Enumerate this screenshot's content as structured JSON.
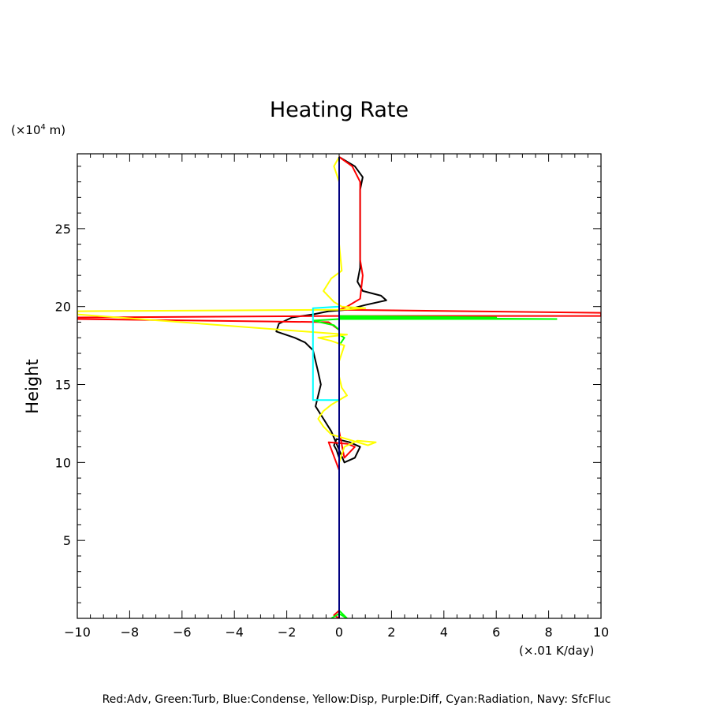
{
  "chart_data": {
    "type": "line",
    "title": "Heating Rate",
    "xlabel": "",
    "ylabel": "Height",
    "x_unit": "(×.01 K/day)",
    "y_unit_prefix": "(×10",
    "y_unit_exp": "4",
    "y_unit_suffix": " m)",
    "xlim": [
      -10,
      10
    ],
    "ylim": [
      0,
      29.8
    ],
    "xticks": [
      -10,
      -8,
      -6,
      -4,
      -2,
      0,
      2,
      4,
      6,
      8,
      10
    ],
    "xtick_labels": [
      "−10",
      "−8",
      "−6",
      "−4",
      "−2",
      "0",
      "2",
      "4",
      "6",
      "8",
      "10"
    ],
    "yticks": [
      5,
      10,
      15,
      20,
      25
    ],
    "ytick_labels": [
      "5",
      "10",
      "15",
      "20",
      "25"
    ],
    "grid": false,
    "legend_text": "Red:Adv, Green:Turb, Blue:Condense, Yellow:Disp, Purple:Diff, Cyan:Radiation, Navy: SfcFluc",
    "legend_placement": "bottom",
    "series": [
      {
        "color": "#000000",
        "x": [
          0.0,
          0.0,
          0.0,
          0.0,
          -0.1,
          -0.2,
          -0.1,
          0.4,
          0.8,
          0.6,
          0.2,
          -0.3,
          -0.6,
          -0.9,
          -0.8,
          -0.7,
          -0.8,
          -0.9,
          -1.0,
          -1.3,
          -1.7,
          -2.4,
          -2.3,
          -1.8,
          -1.0,
          -0.4,
          0.3,
          1.0,
          1.8,
          1.6,
          0.9,
          0.7,
          0.8,
          0.8,
          0.8,
          0.8,
          0.9,
          0.6,
          0.0
        ],
        "y": [
          0.3,
          5.0,
          9.5,
          10.3,
          10.8,
          11.1,
          11.5,
          11.3,
          11.0,
          10.3,
          10.0,
          12.0,
          12.8,
          13.6,
          14.3,
          15.0,
          15.8,
          16.5,
          17.2,
          17.7,
          18.0,
          18.4,
          18.9,
          19.3,
          19.5,
          19.7,
          19.8,
          20.1,
          20.4,
          20.7,
          21.0,
          21.6,
          22.5,
          24.0,
          26.0,
          27.5,
          28.3,
          29.0,
          29.6
        ]
      },
      {
        "color": "#ff0000",
        "x": [
          0.0,
          -0.2,
          0.0,
          0.0,
          0.0,
          -0.4,
          0.3,
          0.6,
          0.2,
          0.0,
          0.0,
          0.0,
          0.0,
          0.0,
          -0.4,
          -10.0,
          -10.0,
          0.0,
          10.0,
          10.0,
          0.0,
          0.3,
          0.8,
          0.9,
          0.8,
          0.8,
          0.8,
          0.8,
          0.5,
          0.0
        ],
        "y": [
          0.0,
          0.2,
          0.5,
          5.0,
          9.5,
          11.3,
          11.2,
          11.0,
          10.3,
          12.0,
          14.0,
          15.0,
          17.0,
          18.5,
          19.0,
          19.2,
          19.3,
          19.4,
          19.4,
          19.6,
          19.8,
          20.0,
          20.5,
          22.0,
          23.0,
          25.0,
          27.0,
          28.0,
          29.0,
          29.6
        ]
      },
      {
        "color": "#00ff00",
        "x": [
          -0.3,
          0.0,
          0.3,
          0.0,
          0.0,
          0.0,
          0.0,
          0.0,
          0.0,
          0.0,
          0.2,
          0.0,
          0.0,
          -0.2,
          -1.0,
          0.0,
          8.3,
          0.0,
          6.0,
          0.0,
          0.0,
          0.0
        ],
        "y": [
          0.0,
          0.3,
          0.0,
          0.5,
          5.0,
          10.0,
          12.0,
          14.0,
          16.0,
          17.5,
          18.0,
          18.2,
          18.5,
          18.8,
          19.1,
          19.2,
          19.2,
          19.3,
          19.3,
          19.4,
          22.0,
          29.6
        ]
      },
      {
        "color": "#ffff00",
        "x": [
          0.0,
          0.0,
          0.0,
          0.2,
          0.7,
          1.4,
          1.1,
          0.3,
          -0.3,
          -0.6,
          -0.8,
          -0.6,
          -0.3,
          0.3,
          0.1,
          0.0,
          0.0,
          0.2,
          -0.3,
          -0.8,
          0.3,
          -10.0,
          -10.0,
          0.0,
          1.0,
          0.1,
          -0.2,
          -0.6,
          -0.3,
          0.1,
          0.0,
          0.0,
          0.0,
          -0.2,
          0.0
        ],
        "y": [
          0.0,
          5.0,
          10.0,
          11.0,
          11.4,
          11.3,
          11.1,
          11.5,
          11.8,
          12.3,
          12.8,
          13.3,
          13.7,
          14.3,
          14.8,
          15.5,
          16.5,
          17.5,
          17.8,
          18.0,
          18.2,
          19.5,
          19.7,
          19.8,
          19.9,
          20.0,
          20.3,
          21.0,
          21.8,
          22.3,
          24.0,
          26.0,
          28.0,
          29.0,
          29.6
        ]
      },
      {
        "color": "#00ffff",
        "x": [
          0.0,
          0.0,
          -1.0,
          -1.0,
          0.0,
          0.0
        ],
        "y": [
          13.9,
          14.0,
          14.0,
          19.9,
          20.0,
          20.1
        ]
      },
      {
        "color": "#000080",
        "x": [
          0.0,
          0.0
        ],
        "y": [
          0.0,
          29.6
        ]
      }
    ]
  }
}
